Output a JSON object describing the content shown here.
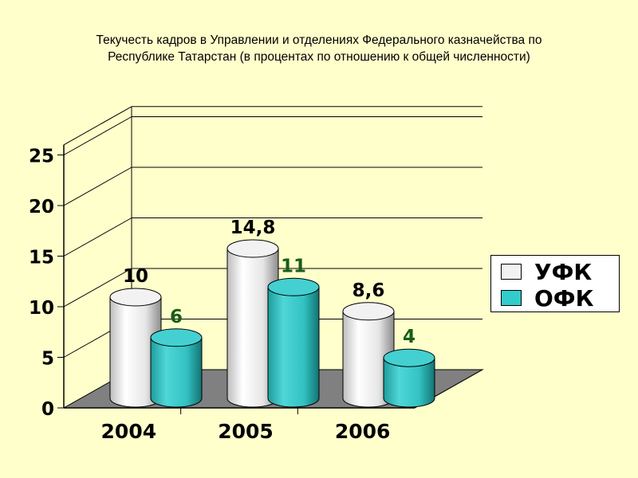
{
  "title_line1": "Текучесть кадров в Управлении и отделениях Федерального казначейства по",
  "title_line2": "Республике Татарстан (в процентах по отношению к общей численности)",
  "colors": {
    "background": "#ffffcc",
    "ufk": "#f2f2f2",
    "ofk": "#33cccc",
    "floor": "#808080"
  },
  "chart_data": {
    "type": "bar",
    "categories": [
      "2004",
      "2005",
      "2006"
    ],
    "series": [
      {
        "name": "УФК",
        "values": [
          10,
          14.8,
          8.6
        ],
        "labels": [
          "10",
          "14,8",
          "8,6"
        ]
      },
      {
        "name": "ОФК",
        "values": [
          6,
          11,
          4
        ],
        "labels": [
          "6",
          "11",
          "4"
        ]
      }
    ],
    "yticks": [
      "0",
      "5",
      "10",
      "15",
      "20",
      "25"
    ],
    "ylim": [
      0,
      25
    ],
    "grid": true,
    "legend_position": "right",
    "style": "3d-cylinder"
  }
}
